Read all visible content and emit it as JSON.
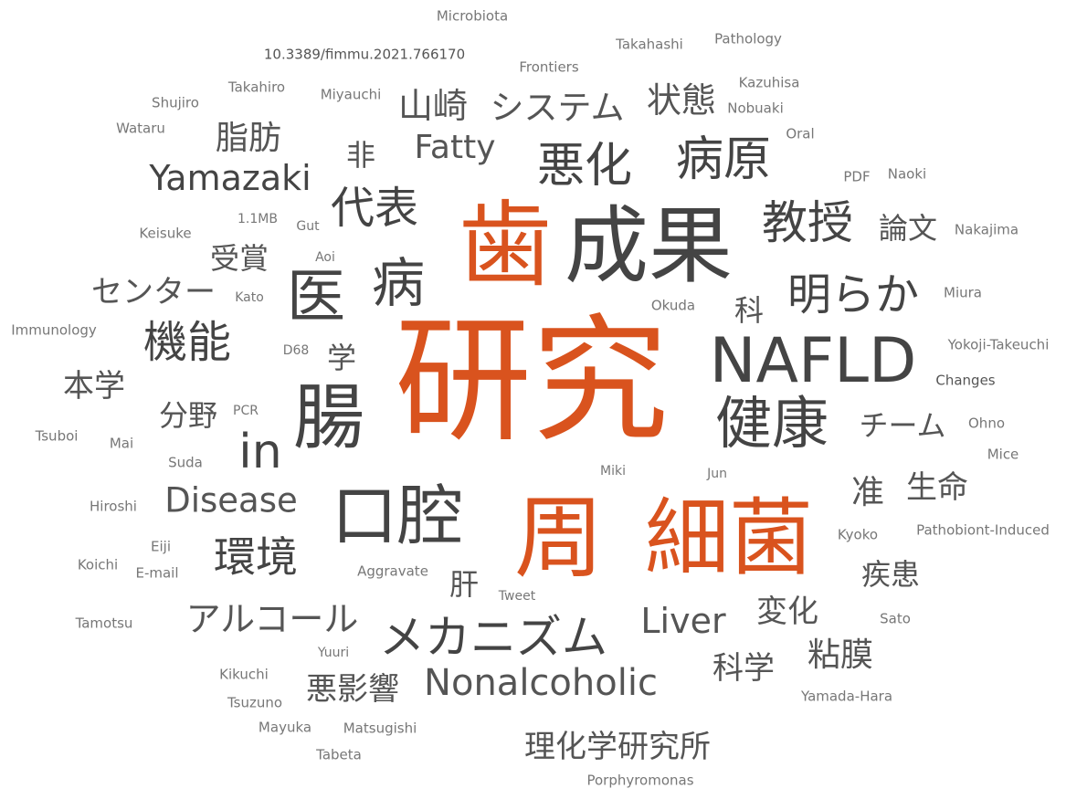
{
  "colors": {
    "accent": "#d9531e",
    "dark": "#444444",
    "mid": "#555555",
    "light": "#777777"
  },
  "words": [
    "研究",
    "歯",
    "成果",
    "周",
    "細菌",
    "NAFLD",
    "腸",
    "口腔",
    "医",
    "病",
    "健康",
    "in",
    "Nonalcoholic",
    "メカニズム",
    "悪化",
    "病原",
    "教授",
    "明らか",
    "代表",
    "機能",
    "環境",
    "Yamazaki",
    "Disease",
    "Fatty",
    "システム",
    "山崎",
    "状態",
    "アルコール",
    "Liver",
    "理化学研究所",
    "センター",
    "粘膜",
    "悪影響",
    "脂肪",
    "本学",
    "生命",
    "チーム",
    "受賞",
    "論文",
    "分野",
    "疾患",
    "変化",
    "科学",
    "非",
    "准",
    "肝",
    "学",
    "科",
    "Microbiota",
    "Takahashi",
    "Pathology",
    "10.3389/fimmu.2021.766170",
    "Frontiers",
    "Kazuhisa",
    "Takahiro",
    "Shujiro",
    "Miyauchi",
    "Nobuaki",
    "Wataru",
    "Oral",
    "PDF",
    "Naoki",
    "1.1MB",
    "Gut",
    "Keisuke",
    "Nakajima",
    "Aoi",
    "Kato",
    "Miura",
    "Okuda",
    "Immunology",
    "D68",
    "Yokoji-Takeuchi",
    "Changes",
    "PCR",
    "Ohno",
    "Tsuboi",
    "Mai",
    "Mice",
    "Suda",
    "Miki",
    "Jun",
    "Hiroshi",
    "Kyoko",
    "Pathobiont-Induced",
    "Eiji",
    "Koichi",
    "E-mail",
    "Aggravate",
    "Tweet",
    "Tamotsu",
    "Sato",
    "Yuuri",
    "Kikuchi",
    "Tsuzuno",
    "Yamada-Hara",
    "Mayuka",
    "Matsugishi",
    "Tabeta",
    "Porphyromonas"
  ]
}
